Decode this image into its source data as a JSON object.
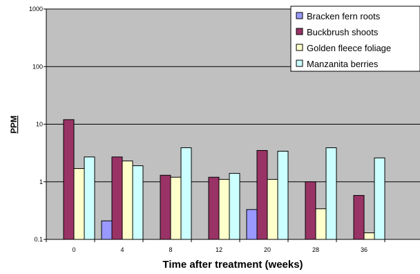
{
  "chart_data": {
    "type": "bar",
    "y_scale": "log",
    "ylabel": "PPM",
    "xlabel": "Time after treatment (weeks)",
    "ylim": [
      0.1,
      1000
    ],
    "y_ticks": [
      "0.1",
      "1",
      "10",
      "100",
      "1000"
    ],
    "y_tick_values": [
      0.1,
      1,
      10,
      100,
      1000
    ],
    "grid": "horizontal",
    "legend_position": "top-right",
    "categories": [
      "0",
      "4",
      "8",
      "12",
      "20",
      "28",
      "36"
    ],
    "series": [
      {
        "name": "Bracken fern roots",
        "color": "#9999ff",
        "values": [
          null,
          0.21,
          null,
          null,
          0.33,
          null,
          null
        ]
      },
      {
        "name": "Buckbrush shoots",
        "color": "#993366",
        "values": [
          12,
          2.7,
          1.3,
          1.2,
          3.5,
          1.0,
          0.58
        ]
      },
      {
        "name": "Golden fleece foliage",
        "color": "#ffffcc",
        "values": [
          1.7,
          2.3,
          1.2,
          1.1,
          1.1,
          0.34,
          0.13
        ]
      },
      {
        "name": "Manzanita berries",
        "color": "#ccffff",
        "values": [
          2.7,
          1.9,
          3.9,
          1.4,
          3.4,
          3.9,
          2.6
        ]
      }
    ],
    "plot_background": "#c0c0c0"
  }
}
